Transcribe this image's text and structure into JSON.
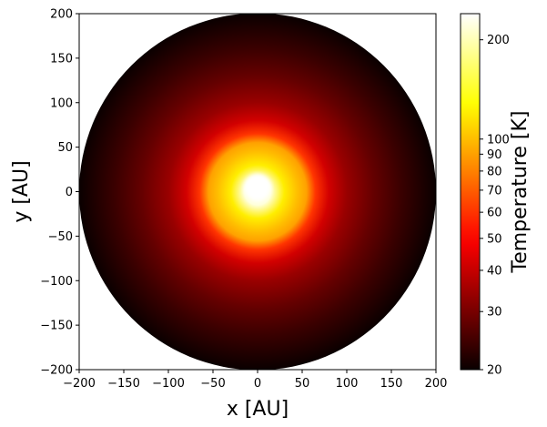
{
  "chart_data": {
    "type": "heatmap",
    "title": "",
    "xlabel": "x [AU]",
    "ylabel": "y [AU]",
    "xlim": [
      -200,
      200
    ],
    "ylim": [
      -200,
      200
    ],
    "xticks": [
      -200,
      -150,
      -100,
      -50,
      0,
      50,
      100,
      150,
      200
    ],
    "yticks": [
      -200,
      -150,
      -100,
      -50,
      0,
      50,
      100,
      150,
      200
    ],
    "grid": false,
    "colormap": "hot",
    "disk": {
      "outer_radius_au": 200,
      "center_x_au": 0,
      "center_y_au": 0,
      "hole_radius_au": 15,
      "hole_center_x_au": 0,
      "hole_center_y_au": 5
    },
    "temperature_profile": {
      "radius_au": [
        15,
        30,
        45,
        55,
        65,
        80,
        100,
        130,
        160,
        200
      ],
      "temperature_k": [
        220,
        120,
        100,
        90,
        60,
        42,
        34,
        28,
        24,
        20
      ]
    },
    "colorbar": {
      "label": "Temperature [K]",
      "scale": "log",
      "range": [
        20,
        240
      ],
      "ticks": [
        20,
        30,
        40,
        50,
        60,
        70,
        80,
        90,
        100,
        200
      ],
      "tick_labels": [
        "20",
        "30",
        "40",
        "50",
        "60",
        "70",
        "80",
        "90",
        "100",
        "200"
      ]
    }
  }
}
